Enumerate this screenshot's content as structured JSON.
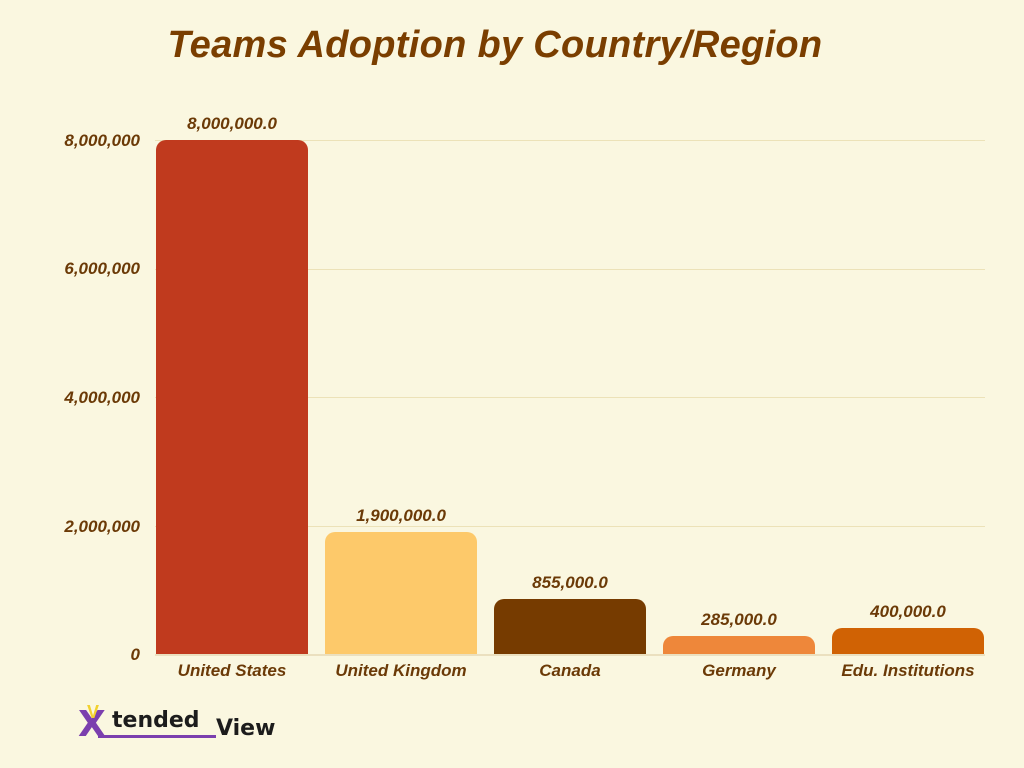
{
  "title": "Teams Adoption by Country/Region",
  "logo": {
    "x": "X",
    "v": "V",
    "tended": "tended",
    "view": "View"
  },
  "colors": {
    "background": "#faf7e0",
    "text": "#6b3a07",
    "title": "#7a3e00"
  },
  "y_ticks": [
    "0",
    "2,000,000",
    "4,000,000",
    "6,000,000",
    "8,000,000"
  ],
  "bars": [
    {
      "category": "United States",
      "label": "8,000,000.0",
      "value": 8000000,
      "color": "#c03a1e"
    },
    {
      "category": "United Kingdom",
      "label": "1,900,000.0",
      "value": 1900000,
      "color": "#fdc96a"
    },
    {
      "category": "Canada",
      "label": "855,000.0",
      "value": 855000,
      "color": "#763b00"
    },
    {
      "category": "Germany",
      "label": "285,000.0",
      "value": 285000,
      "color": "#ee873a"
    },
    {
      "category": "Edu. Institutions",
      "label": "400,000.0",
      "value": 400000,
      "color": "#d06204"
    }
  ],
  "chart_data": {
    "type": "bar",
    "title": "Teams Adoption by Country/Region",
    "categories": [
      "United States",
      "United Kingdom",
      "Canada",
      "Germany",
      "Edu. Institutions"
    ],
    "values": [
      8000000,
      1900000,
      855000,
      285000,
      400000
    ],
    "data_labels": [
      "8,000,000.0",
      "1,900,000.0",
      "855,000.0",
      "285,000.0",
      "400,000.0"
    ],
    "colors": [
      "#c03a1e",
      "#fdc96a",
      "#763b00",
      "#ee873a",
      "#d06204"
    ],
    "xlabel": "",
    "ylabel": "",
    "ylim": [
      0,
      8000000
    ],
    "y_ticks": [
      0,
      2000000,
      4000000,
      6000000,
      8000000
    ],
    "grid": true,
    "legend": "none"
  }
}
